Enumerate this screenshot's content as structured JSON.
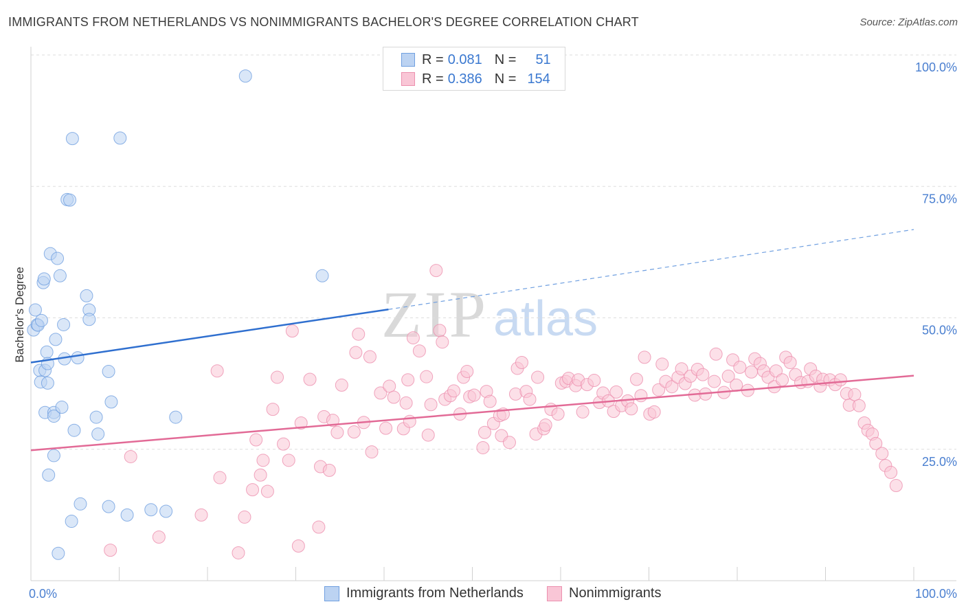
{
  "title": "IMMIGRANTS FROM NETHERLANDS VS NONIMMIGRANTS BACHELOR'S DEGREE CORRELATION CHART",
  "source": "Source: ZipAtlas.com",
  "watermark": {
    "zip": "ZIP",
    "atlas": "atlas"
  },
  "legend": {
    "r_label": "R = ",
    "n_label": "N = ",
    "rows": [
      {
        "r": "0.081",
        "n": "51",
        "fill": "#bcd3f2",
        "stroke": "#6f9fe0"
      },
      {
        "r": "0.386",
        "n": "154",
        "fill": "#f9c6d6",
        "stroke": "#ec8fae"
      }
    ]
  },
  "bottom_legend": [
    {
      "label": "Immigrants from Netherlands",
      "fill": "#bcd3f2",
      "stroke": "#6f9fe0"
    },
    {
      "label": "Nonimmigrants",
      "fill": "#f9c6d6",
      "stroke": "#ec8fae"
    }
  ],
  "chart_data": {
    "type": "scatter",
    "title": "IMMIGRANTS FROM NETHERLANDS VS NONIMMIGRANTS BACHELOR'S DEGREE CORRELATION CHART",
    "xlabel": "",
    "ylabel": "Bachelor's Degree",
    "xlim": [
      0,
      100
    ],
    "ylim": [
      0,
      100
    ],
    "x_tick_labels": [
      "0.0%",
      "100.0%"
    ],
    "y_ticks": [
      {
        "value": 25,
        "label": "25.0%"
      },
      {
        "value": 50,
        "label": "50.0%"
      },
      {
        "value": 75,
        "label": "75.0%"
      },
      {
        "value": 100,
        "label": "100.0%"
      }
    ],
    "grid": true,
    "legend_position": "top-center",
    "series": [
      {
        "name": "Immigrants from Netherlands",
        "color": "#6f9fe0",
        "fill": "#bcd3f2",
        "trend": {
          "x0": 0,
          "y0": 41.5,
          "x1": 40.5,
          "y1": 51.6,
          "dashed_to_x": 100,
          "dashed_to_y": 66.8
        },
        "points": [
          [
            0.3,
            47.7
          ],
          [
            0.5,
            51.5
          ],
          [
            0.7,
            48.7
          ],
          [
            0.8,
            48.6
          ],
          [
            1.0,
            40.0
          ],
          [
            1.1,
            37.8
          ],
          [
            1.2,
            49.5
          ],
          [
            1.4,
            56.7
          ],
          [
            1.5,
            57.4
          ],
          [
            1.6,
            40.0
          ],
          [
            1.6,
            32.0
          ],
          [
            1.8,
            43.5
          ],
          [
            1.9,
            37.6
          ],
          [
            1.9,
            41.3
          ],
          [
            2.0,
            20.1
          ],
          [
            2.2,
            62.2
          ],
          [
            2.6,
            32.0
          ],
          [
            2.6,
            31.3
          ],
          [
            2.6,
            23.8
          ],
          [
            2.8,
            45.9
          ],
          [
            3.0,
            61.3
          ],
          [
            3.1,
            5.2
          ],
          [
            3.3,
            58.0
          ],
          [
            3.5,
            33.0
          ],
          [
            3.7,
            48.7
          ],
          [
            3.8,
            42.2
          ],
          [
            4.1,
            72.5
          ],
          [
            4.4,
            72.4
          ],
          [
            4.6,
            11.3
          ],
          [
            4.7,
            84.1
          ],
          [
            4.9,
            28.6
          ],
          [
            5.3,
            42.4
          ],
          [
            5.6,
            14.6
          ],
          [
            6.3,
            54.2
          ],
          [
            6.6,
            51.5
          ],
          [
            6.6,
            49.7
          ],
          [
            7.4,
            31.1
          ],
          [
            7.6,
            27.9
          ],
          [
            8.8,
            39.8
          ],
          [
            8.8,
            14.1
          ],
          [
            9.1,
            34.0
          ],
          [
            10.1,
            84.2
          ],
          [
            10.9,
            12.5
          ],
          [
            13.6,
            13.5
          ],
          [
            15.3,
            13.2
          ],
          [
            16.4,
            31.1
          ],
          [
            24.3,
            96.0
          ],
          [
            33.0,
            58.0
          ]
        ]
      },
      {
        "name": "Nonimmigrants",
        "color": "#ec8fae",
        "fill": "#f9c6d6",
        "trend": {
          "x0": 0,
          "y0": 24.8,
          "x1": 100,
          "y1": 39.0
        },
        "points": [
          [
            9.0,
            5.8
          ],
          [
            11.3,
            23.6
          ],
          [
            14.5,
            8.3
          ],
          [
            19.3,
            12.5
          ],
          [
            21.1,
            39.9
          ],
          [
            21.4,
            19.6
          ],
          [
            23.5,
            5.3
          ],
          [
            24.2,
            12.1
          ],
          [
            25.1,
            17.3
          ],
          [
            25.5,
            26.8
          ],
          [
            26.0,
            20.1
          ],
          [
            26.3,
            22.9
          ],
          [
            26.8,
            17.0
          ],
          [
            27.4,
            32.6
          ],
          [
            27.9,
            38.7
          ],
          [
            28.6,
            26.0
          ],
          [
            29.2,
            22.9
          ],
          [
            29.6,
            47.5
          ],
          [
            30.3,
            6.6
          ],
          [
            30.6,
            30.0
          ],
          [
            31.6,
            38.3
          ],
          [
            32.6,
            10.2
          ],
          [
            32.8,
            21.7
          ],
          [
            33.2,
            31.2
          ],
          [
            33.8,
            21.0
          ],
          [
            34.2,
            30.5
          ],
          [
            34.7,
            28.2
          ],
          [
            35.2,
            37.2
          ],
          [
            36.6,
            28.3
          ],
          [
            36.8,
            43.4
          ],
          [
            37.1,
            46.9
          ],
          [
            37.7,
            30.1
          ],
          [
            38.4,
            42.6
          ],
          [
            38.6,
            24.5
          ],
          [
            39.6,
            35.7
          ],
          [
            40.2,
            29.0
          ],
          [
            40.6,
            37.0
          ],
          [
            41.1,
            34.9
          ],
          [
            42.2,
            28.9
          ],
          [
            42.5,
            33.8
          ],
          [
            42.7,
            38.2
          ],
          [
            42.9,
            30.3
          ],
          [
            43.3,
            46.2
          ],
          [
            44.0,
            43.7
          ],
          [
            44.8,
            38.8
          ],
          [
            45.0,
            27.7
          ],
          [
            45.3,
            33.5
          ],
          [
            45.9,
            59.0
          ],
          [
            46.3,
            47.6
          ],
          [
            46.6,
            45.4
          ],
          [
            46.9,
            34.5
          ],
          [
            47.5,
            35.2
          ],
          [
            47.9,
            36.1
          ],
          [
            48.6,
            31.7
          ],
          [
            49.0,
            38.7
          ],
          [
            49.4,
            39.8
          ],
          [
            49.7,
            35.0
          ],
          [
            50.2,
            35.3
          ],
          [
            51.2,
            25.3
          ],
          [
            51.4,
            28.2
          ],
          [
            51.6,
            36.0
          ],
          [
            52.0,
            34.1
          ],
          [
            52.4,
            29.9
          ],
          [
            53.1,
            31.4
          ],
          [
            53.3,
            27.6
          ],
          [
            53.5,
            31.7
          ],
          [
            54.2,
            26.3
          ],
          [
            54.9,
            35.5
          ],
          [
            55.1,
            40.4
          ],
          [
            55.6,
            41.5
          ],
          [
            56.1,
            36.0
          ],
          [
            56.5,
            34.5
          ],
          [
            57.2,
            27.9
          ],
          [
            57.4,
            38.7
          ],
          [
            58.1,
            28.9
          ],
          [
            58.3,
            29.6
          ],
          [
            58.9,
            32.6
          ],
          [
            59.7,
            31.7
          ],
          [
            60.1,
            37.6
          ],
          [
            60.6,
            37.9
          ],
          [
            60.9,
            38.5
          ],
          [
            61.7,
            37.1
          ],
          [
            62.0,
            38.2
          ],
          [
            62.5,
            32.1
          ],
          [
            63.0,
            37.3
          ],
          [
            63.8,
            38.1
          ],
          [
            64.4,
            33.9
          ],
          [
            64.8,
            35.7
          ],
          [
            65.4,
            34.2
          ],
          [
            66.0,
            32.2
          ],
          [
            66.3,
            35.9
          ],
          [
            66.9,
            33.3
          ],
          [
            67.6,
            34.2
          ],
          [
            68.0,
            32.7
          ],
          [
            68.6,
            38.3
          ],
          [
            69.1,
            35.2
          ],
          [
            69.5,
            42.5
          ],
          [
            70.1,
            31.7
          ],
          [
            70.6,
            32.1
          ],
          [
            71.1,
            36.3
          ],
          [
            71.5,
            41.2
          ],
          [
            71.9,
            37.9
          ],
          [
            72.6,
            36.9
          ],
          [
            73.3,
            38.7
          ],
          [
            73.7,
            40.3
          ],
          [
            74.1,
            37.5
          ],
          [
            74.7,
            38.9
          ],
          [
            75.2,
            35.3
          ],
          [
            75.5,
            40.2
          ],
          [
            76.1,
            39.2
          ],
          [
            76.4,
            35.5
          ],
          [
            77.4,
            37.9
          ],
          [
            77.6,
            43.1
          ],
          [
            78.5,
            35.8
          ],
          [
            79.0,
            38.9
          ],
          [
            79.5,
            42.0
          ],
          [
            79.9,
            37.2
          ],
          [
            80.3,
            40.6
          ],
          [
            81.2,
            36.2
          ],
          [
            81.6,
            39.7
          ],
          [
            82.0,
            42.2
          ],
          [
            82.6,
            41.3
          ],
          [
            83.0,
            39.9
          ],
          [
            83.5,
            38.7
          ],
          [
            84.2,
            36.9
          ],
          [
            84.4,
            39.9
          ],
          [
            85.1,
            38.2
          ],
          [
            85.5,
            42.5
          ],
          [
            86.0,
            41.5
          ],
          [
            86.6,
            39.2
          ],
          [
            87.2,
            37.7
          ],
          [
            88.0,
            37.9
          ],
          [
            88.3,
            40.3
          ],
          [
            88.9,
            38.9
          ],
          [
            89.4,
            37.0
          ],
          [
            89.7,
            38.3
          ],
          [
            90.5,
            38.2
          ],
          [
            91.1,
            37.3
          ],
          [
            91.7,
            38.2
          ],
          [
            92.4,
            35.6
          ],
          [
            92.7,
            33.4
          ],
          [
            93.3,
            35.4
          ],
          [
            93.8,
            33.3
          ],
          [
            94.4,
            30.0
          ],
          [
            94.8,
            28.6
          ],
          [
            95.3,
            27.9
          ],
          [
            95.7,
            26.1
          ],
          [
            96.4,
            24.2
          ],
          [
            96.8,
            21.9
          ],
          [
            97.4,
            20.6
          ],
          [
            98.0,
            18.1
          ]
        ]
      }
    ]
  }
}
